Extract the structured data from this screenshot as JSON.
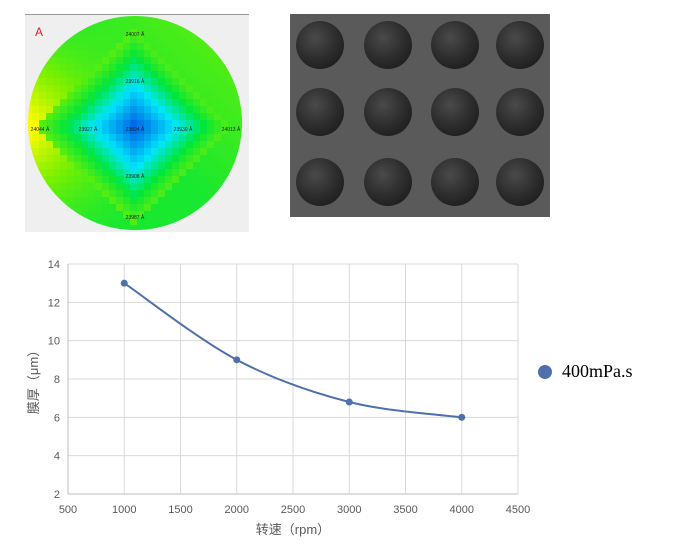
{
  "wafer_map": {
    "tag": "A",
    "labels": [
      "24007 Å",
      "23916 Å",
      "24044 Å",
      "23927 Å",
      "23824 Å",
      "23930 Å",
      "24013 Å",
      "23908 Å",
      "23987 Å"
    ]
  },
  "chart_data": {
    "type": "line",
    "title": "",
    "xlabel": "转速（rpm）",
    "ylabel": "膜厚（μm）",
    "xlim": [
      500,
      4500
    ],
    "ylim": [
      2,
      14
    ],
    "xticks": [
      500,
      1000,
      1500,
      2000,
      2500,
      3000,
      3500,
      4000,
      4500
    ],
    "yticks": [
      2,
      4,
      6,
      8,
      10,
      12,
      14
    ],
    "grid": true,
    "legend_position": "right",
    "series": [
      {
        "name": "400mPa.s",
        "color": "#4e70ad",
        "x": [
          1000,
          2000,
          3000,
          4000
        ],
        "y": [
          13,
          9,
          6.8,
          6
        ]
      }
    ]
  }
}
